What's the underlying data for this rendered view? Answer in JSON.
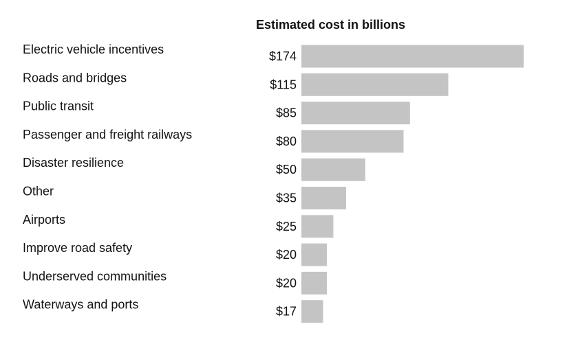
{
  "chart_data": {
    "type": "bar",
    "orientation": "horizontal",
    "title": "Estimated cost in billions",
    "xlabel": "",
    "ylabel": "",
    "value_prefix": "$",
    "categories": [
      "Electric vehicle incentives",
      "Roads and bridges",
      "Public transit",
      "Passenger and freight railways",
      "Disaster resilience",
      "Other",
      "Airports",
      "Improve road safety",
      "Underserved communities",
      "Waterways and ports"
    ],
    "values": [
      174,
      115,
      85,
      80,
      50,
      35,
      25,
      20,
      20,
      17
    ],
    "value_labels": [
      "$174",
      "$115",
      "$85",
      "$80",
      "$50",
      "$35",
      "$25",
      "$20",
      "$20",
      "$17"
    ],
    "xlim": [
      0,
      174
    ],
    "grid": false,
    "legend": "none",
    "bar_color": "#c4c4c4",
    "text_color": "#121212"
  }
}
